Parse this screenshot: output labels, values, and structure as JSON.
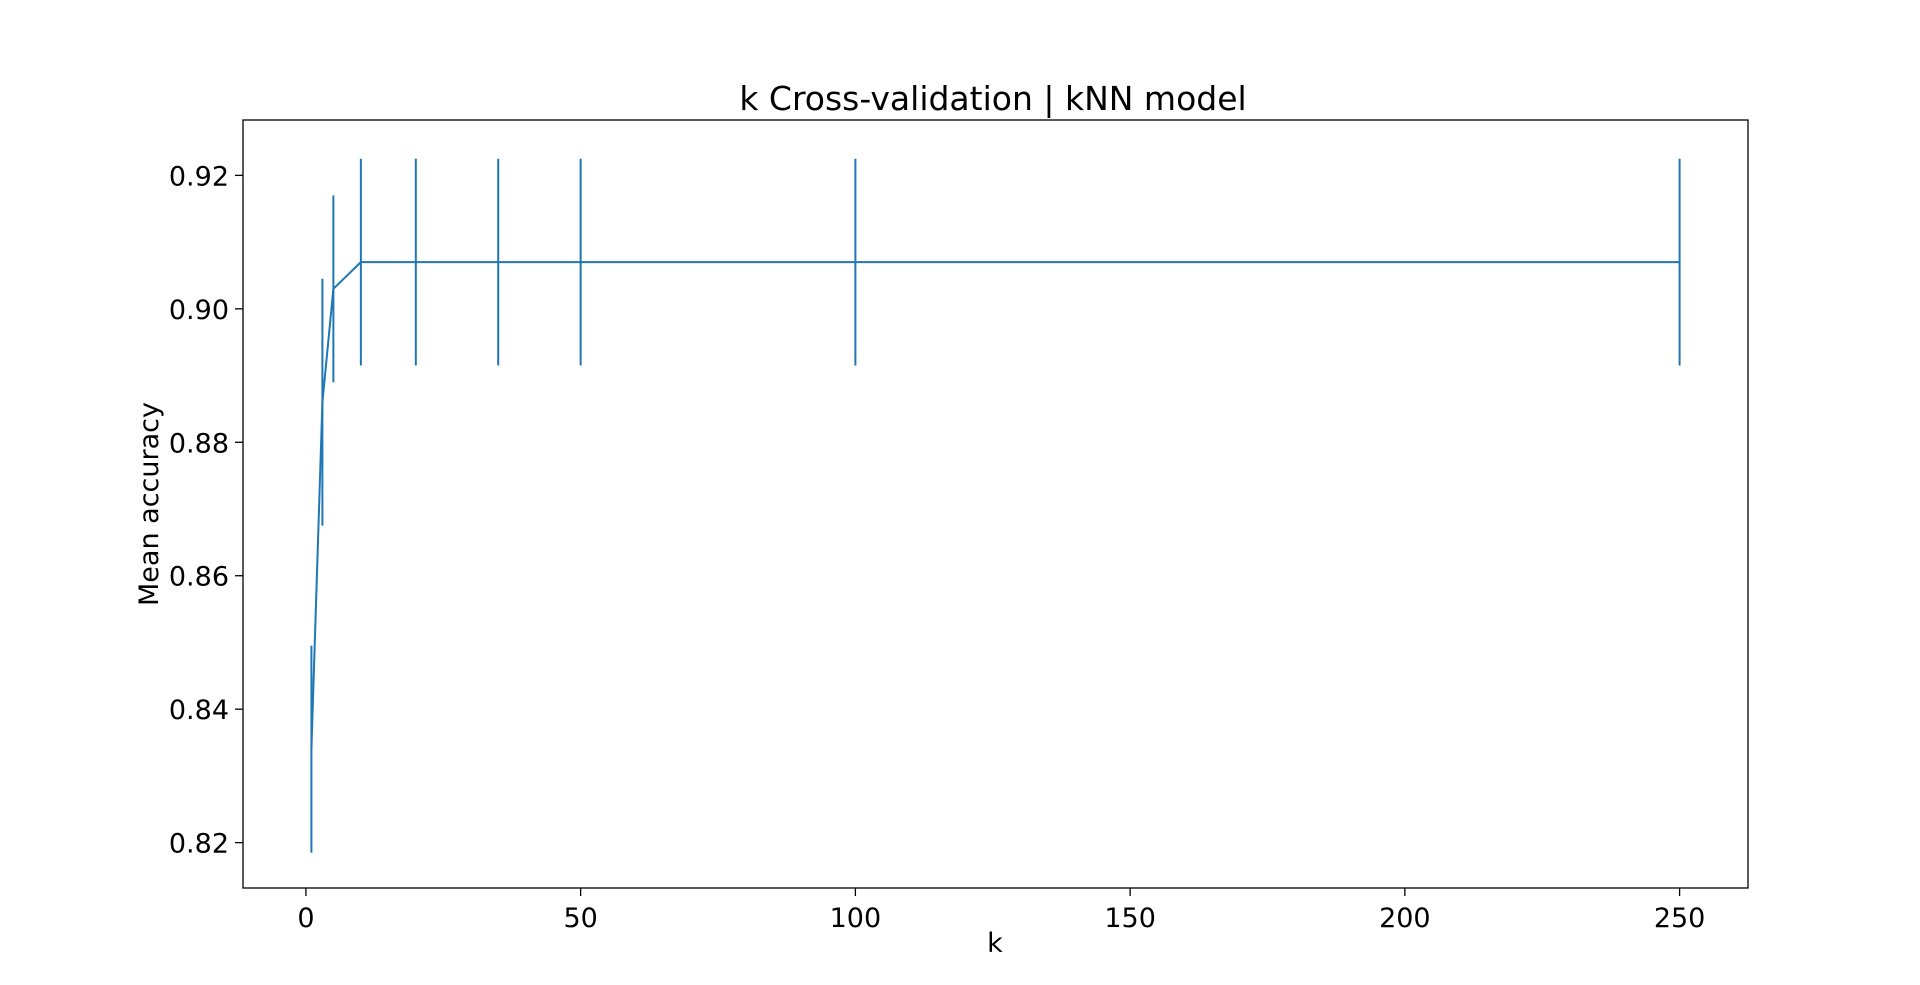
{
  "chart_data": {
    "type": "line",
    "title": "k Cross-validation | kNN model",
    "xlabel": "k",
    "ylabel": "Mean accuracy",
    "xlim": [
      -11.45,
      262.45
    ],
    "ylim": [
      0.8132,
      0.9283
    ],
    "x_ticks": [
      0,
      50,
      100,
      150,
      200,
      250
    ],
    "y_ticks": [
      0.82,
      0.84,
      0.86,
      0.88,
      0.9,
      0.92
    ],
    "y_tick_labels": [
      "0.82",
      "0.84",
      "0.86",
      "0.88",
      "0.90",
      "0.92"
    ],
    "grid": false,
    "legend": "none",
    "series": [
      {
        "color": "#1f77b4",
        "x": [
          1,
          3,
          5,
          10,
          20,
          35,
          50,
          100,
          250
        ],
        "y": [
          0.834,
          0.886,
          0.903,
          0.907,
          0.907,
          0.907,
          0.907,
          0.907,
          0.907
        ],
        "yerr": [
          0.0155,
          0.0185,
          0.014,
          0.0155,
          0.0155,
          0.0155,
          0.0155,
          0.0155,
          0.0155
        ]
      }
    ]
  }
}
